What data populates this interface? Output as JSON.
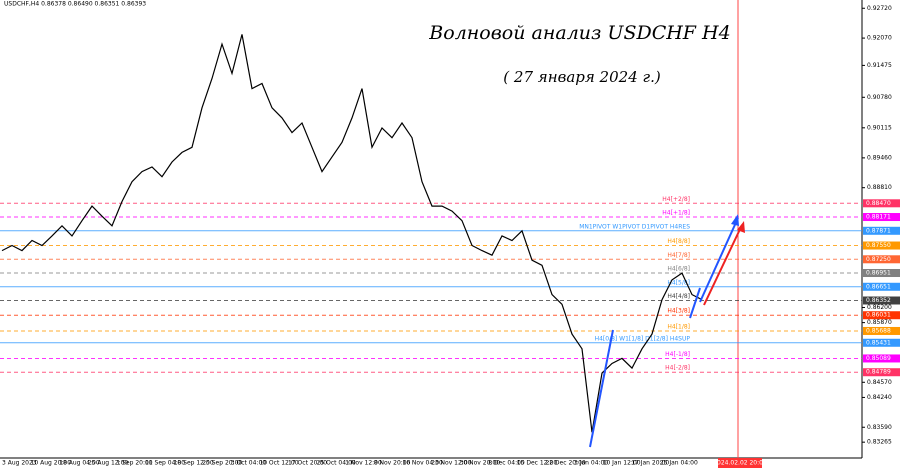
{
  "chart_data": {
    "type": "line",
    "header": "USDCHF,H4  0.86378 0.86490 0.86351 0.86393",
    "title": "Волновой анализ USDCHF H4",
    "subtitle": "( 27 января 2024 г.)",
    "color": "#000000",
    "ylim": [
      0.8292,
      0.929
    ],
    "yticks": [
      {
        "value": 0.9272,
        "label": "0.92720"
      },
      {
        "value": 0.9207,
        "label": "0.92070"
      },
      {
        "value": 0.91475,
        "label": "0.91475"
      },
      {
        "value": 0.9078,
        "label": "0.90780"
      },
      {
        "value": 0.90115,
        "label": "0.90115"
      },
      {
        "value": 0.8946,
        "label": "0.89460"
      },
      {
        "value": 0.8881,
        "label": "0.88810"
      },
      {
        "value": 0.862,
        "label": "0.86200"
      },
      {
        "value": 0.8587,
        "label": "0.85870"
      },
      {
        "value": 0.8457,
        "label": "0.84570"
      },
      {
        "value": 0.8424,
        "label": "0.84240"
      },
      {
        "value": 0.8359,
        "label": "0.83590"
      },
      {
        "value": 0.83265,
        "label": "0.83265"
      }
    ],
    "x_labels": [
      "3 Aug 2023",
      "10 Aug 20:00",
      "18 Aug 04:00",
      "25 Aug 12:00",
      "1 Sep 20:00",
      "11 Sep 04:00",
      "18 Sep 12:00",
      "25 Sep 20:00",
      "3 Oct 04:00",
      "10 Oct 12:00",
      "17 Oct 20:00",
      "25 Oct 04:00",
      "1 Nov 12:00",
      "8 Nov 20:00",
      "16 Nov 04:00",
      "23 Nov 12:00",
      "30 Nov 20:00",
      "8 Dec 04:00",
      "15 Dec 12:00",
      "22 Dec 20:00",
      "3 Jan 04:00",
      "10 Jan 12:00",
      "17 Jan 20:00",
      "25 Jan 04:00"
    ],
    "future_date": "2024.02.02 20:00",
    "levels": [
      {
        "name": "H4[+2/8]",
        "value": 0.8847,
        "label": "0.88470",
        "color": "#ff3366",
        "dash": true
      },
      {
        "name": "H4[+1/8]",
        "value": 0.88171,
        "label": "0.88171",
        "color": "#ff00ff",
        "dash": true
      },
      {
        "name": "MN1PIVOT W1PIVOT D1PIVOT H4RES",
        "value": 0.87871,
        "label": "0.87871",
        "color": "#3399ff",
        "dash": false
      },
      {
        "name": "H4[8/8]",
        "value": 0.8755,
        "label": "0.87550",
        "color": "#ff9900",
        "dash": true
      },
      {
        "name": "H4[7/8]",
        "value": 0.8725,
        "label": "0.87250",
        "color": "#ff6633",
        "dash": true
      },
      {
        "name": "H4[6/8]",
        "value": 0.86951,
        "label": "0.86951",
        "color": "#808080",
        "dash": true
      },
      {
        "name": "H4[5/8]",
        "value": 0.86651,
        "label": "0.86651",
        "color": "#3399ff",
        "dash": false
      },
      {
        "name": "H4[4/8]",
        "value": 0.86352,
        "label": "0.86352",
        "color": "#404040",
        "dash": true
      },
      {
        "name": "H4[3/8]",
        "value": 0.86031,
        "label": "0.86031",
        "color": "#ff3300",
        "dash": true
      },
      {
        "name": "H4[1/8]",
        "value": 0.85688,
        "label": "0.85688",
        "color": "#ff9900",
        "dash": true
      },
      {
        "name": "H4[0/8] W1[1/8] D1[2/8] H4SUP",
        "value": 0.85431,
        "label": "0.85431",
        "color": "#3399ff",
        "dash": false
      },
      {
        "name": "H4[-1/8]",
        "value": 0.85089,
        "label": "0.85089",
        "color": "#ff00ff",
        "dash": true
      },
      {
        "name": "H4[-2/8]",
        "value": 0.84789,
        "label": "0.84789",
        "color": "#ff3366",
        "dash": true
      }
    ],
    "values": [
      0.8744,
      0.8755,
      0.8744,
      0.8766,
      0.8755,
      0.8776,
      0.8798,
      0.8776,
      0.8809,
      0.8841,
      0.8819,
      0.8798,
      0.8851,
      0.8894,
      0.8916,
      0.8926,
      0.8905,
      0.8937,
      0.8958,
      0.8969,
      0.9055,
      0.9119,
      0.9194,
      0.913,
      0.9215,
      0.9097,
      0.9108,
      0.9055,
      0.9033,
      0.9001,
      0.9022,
      0.8969,
      0.8916,
      0.8948,
      0.898,
      0.9033,
      0.9097,
      0.8969,
      0.9011,
      0.899,
      0.9022,
      0.899,
      0.8894,
      0.8841,
      0.8841,
      0.883,
      0.8809,
      0.8755,
      0.8744,
      0.8734,
      0.8776,
      0.8766,
      0.8787,
      0.8723,
      0.8712,
      0.8648,
      0.8627,
      0.8562,
      0.853,
      0.8348,
      0.8477,
      0.8498,
      0.8509,
      0.8488,
      0.853,
      0.8562,
      0.8637,
      0.868,
      0.8695,
      0.8648,
      0.8637
    ]
  }
}
